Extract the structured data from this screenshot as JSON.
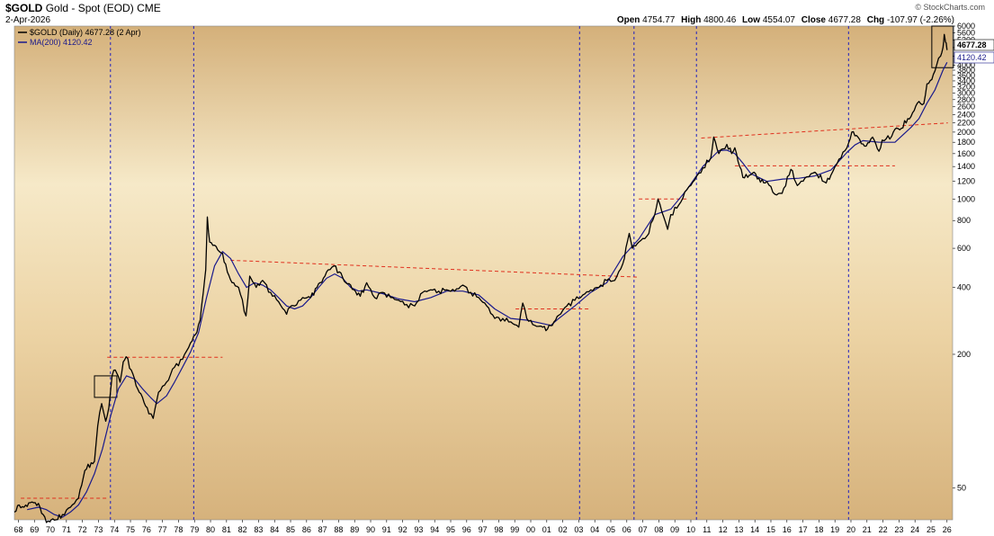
{
  "header": {
    "symbol": "$GOLD",
    "name": "Gold - Spot (EOD)",
    "exchange": "CME",
    "date": "2-Apr-2026",
    "brand": "© StockCharts.com",
    "open_label": "Open",
    "open": "4754.77",
    "high_label": "High",
    "high": "4800.46",
    "low_label": "Low",
    "low": "4554.07",
    "close_label": "Close",
    "close": "4677.28",
    "chg_label": "Chg",
    "chg": "-107.97 (-2.26%)"
  },
  "legend": {
    "price": "$GOLD (Daily) 4677.28 (2 Apr)",
    "ma": "MA(200) 4120.42"
  },
  "colors": {
    "price": "#000000",
    "ma": "#1a1a8c",
    "trendline": "#e0301e",
    "cycle_line": "#2020c0",
    "bg_light": "#f6e8c6",
    "bg_dark": "#d7b47e"
  },
  "chart_data": {
    "type": "line",
    "scale": "log",
    "ylim": [
      36,
      6000
    ],
    "xlim": [
      1968.0,
      2026.6
    ],
    "x_ticks": [
      "68",
      "69",
      "70",
      "71",
      "72",
      "73",
      "74",
      "75",
      "76",
      "77",
      "78",
      "79",
      "80",
      "81",
      "82",
      "83",
      "84",
      "85",
      "86",
      "87",
      "88",
      "89",
      "90",
      "91",
      "92",
      "93",
      "94",
      "95",
      "96",
      "97",
      "98",
      "99",
      "00",
      "01",
      "02",
      "03",
      "04",
      "05",
      "06",
      "07",
      "08",
      "09",
      "10",
      "11",
      "12",
      "13",
      "14",
      "15",
      "16",
      "17",
      "18",
      "19",
      "20",
      "21",
      "22",
      "23",
      "24",
      "25",
      "26"
    ],
    "y_ticks": [
      50,
      200,
      400,
      600,
      800,
      1000,
      1200,
      1400,
      1600,
      1800,
      2000,
      2200,
      2400,
      2600,
      2800,
      3000,
      3200,
      3400,
      3600,
      3800,
      4000,
      4400,
      4800,
      5200,
      5600,
      6000
    ],
    "last_price": 4677.28,
    "last_ma": 4120.42,
    "series": [
      {
        "name": "$GOLD (Daily) 4677.28 (2 Apr)",
        "x": [
          1968.0,
          1968.3,
          1968.6,
          1969.0,
          1969.3,
          1969.6,
          1970.0,
          1970.3,
          1970.6,
          1971.0,
          1971.5,
          1972.0,
          1972.4,
          1972.8,
          1973.0,
          1973.2,
          1973.45,
          1973.7,
          1973.9,
          1974.1,
          1974.3,
          1974.6,
          1974.8,
          1974.98,
          1975.3,
          1975.7,
          1976.0,
          1976.4,
          1976.67,
          1977.0,
          1977.5,
          1978.0,
          1978.5,
          1979.0,
          1979.3,
          1979.6,
          1979.8,
          1979.95,
          1980.05,
          1980.2,
          1980.5,
          1980.8,
          1981.0,
          1981.3,
          1981.6,
          1982.0,
          1982.47,
          1982.7,
          1983.1,
          1983.5,
          1984.0,
          1984.5,
          1985.0,
          1985.2,
          1985.5,
          1986.0,
          1986.5,
          1986.9,
          1987.3,
          1987.6,
          1987.95,
          1988.3,
          1988.7,
          1989.0,
          1989.4,
          1989.8,
          1990.0,
          1990.5,
          1991.0,
          1991.5,
          1992.0,
          1992.5,
          1993.0,
          1993.5,
          1994.0,
          1994.5,
          1995.0,
          1995.5,
          1996.0,
          1996.5,
          1997.0,
          1997.5,
          1998.0,
          1998.5,
          1999.0,
          1999.5,
          1999.75,
          2000.0,
          2000.5,
          2001.0,
          2001.3,
          2001.7,
          2002.0,
          2002.5,
          2003.0,
          2003.5,
          2004.0,
          2004.5,
          2005.0,
          2005.5,
          2006.0,
          2006.4,
          2006.6,
          2007.0,
          2007.5,
          2008.0,
          2008.2,
          2008.8,
          2009.0,
          2009.5,
          2010.0,
          2010.5,
          2011.0,
          2011.5,
          2011.68,
          2012.0,
          2012.5,
          2012.8,
          2013.0,
          2013.3,
          2013.5,
          2013.9,
          2014.2,
          2014.6,
          2015.0,
          2015.5,
          2015.95,
          2016.5,
          2016.9,
          2017.5,
          2018.0,
          2018.7,
          2019.0,
          2019.5,
          2020.0,
          2020.3,
          2020.6,
          2020.8,
          2021.0,
          2021.2,
          2021.6,
          2022.0,
          2022.2,
          2022.8,
          2023.0,
          2023.4,
          2023.8,
          2024.0,
          2024.4,
          2024.8,
          2025.0,
          2025.3,
          2025.6,
          2025.85,
          2026.0,
          2026.08,
          2026.15,
          2026.25
        ],
        "values": [
          39,
          42,
          41,
          43,
          43,
          41,
          35,
          36,
          36,
          38,
          41,
          45,
          60,
          65,
          66,
          95,
          120,
          100,
          115,
          160,
          170,
          150,
          185,
          195,
          170,
          140,
          128,
          108,
          103,
          135,
          150,
          175,
          190,
          225,
          245,
          285,
          380,
          480,
          830,
          640,
          620,
          580,
          570,
          470,
          420,
          400,
          298,
          450,
          400,
          430,
          380,
          345,
          303,
          325,
          330,
          360,
          360,
          400,
          440,
          480,
          500,
          470,
          420,
          410,
          370,
          380,
          420,
          360,
          380,
          360,
          350,
          335,
          330,
          380,
          390,
          385,
          390,
          385,
          410,
          380,
          360,
          330,
          290,
          290,
          280,
          265,
          340,
          290,
          270,
          265,
          260,
          280,
          300,
          330,
          350,
          370,
          390,
          400,
          430,
          430,
          510,
          700,
          600,
          640,
          680,
          850,
          1000,
          730,
          850,
          940,
          1100,
          1220,
          1380,
          1530,
          1900,
          1600,
          1760,
          1600,
          1700,
          1400,
          1250,
          1280,
          1320,
          1190,
          1200,
          1050,
          1060,
          1360,
          1150,
          1260,
          1320,
          1180,
          1280,
          1510,
          1700,
          2000,
          1930,
          1850,
          1770,
          1730,
          1900,
          1640,
          1840,
          1920,
          2060,
          2080,
          2300,
          2350,
          2700,
          2690,
          3300,
          3450,
          4000,
          4400,
          4800,
          5500,
          5100,
          4677
        ]
      },
      {
        "name": "MA(200) 4120.42",
        "x": [
          1968.8,
          1969.5,
          1970.0,
          1970.5,
          1971.0,
          1971.5,
          1972.0,
          1972.5,
          1973.0,
          1973.5,
          1974.0,
          1974.5,
          1975.0,
          1975.5,
          1976.0,
          1976.5,
          1976.9,
          1977.5,
          1978.0,
          1978.5,
          1979.0,
          1979.5,
          1980.0,
          1980.5,
          1981.0,
          1981.5,
          1982.0,
          1982.5,
          1983.0,
          1983.5,
          1984.0,
          1984.5,
          1985.0,
          1985.5,
          1986.0,
          1986.5,
          1987.0,
          1987.5,
          1988.0,
          1988.5,
          1989.0,
          1989.5,
          1990.0,
          1991.0,
          1992.0,
          1993.0,
          1994.0,
          1995.0,
          1996.0,
          1997.0,
          1998.0,
          1999.0,
          2000.0,
          2001.0,
          2001.5,
          2002.0,
          2003.0,
          2004.0,
          2005.0,
          2006.0,
          2007.0,
          2008.0,
          2009.0,
          2010.0,
          2011.0,
          2012.0,
          2012.5,
          2013.0,
          2013.5,
          2014.0,
          2015.0,
          2016.0,
          2017.0,
          2018.0,
          2019.0,
          2020.0,
          2020.5,
          2021.0,
          2022.0,
          2023.0,
          2024.0,
          2024.5,
          2025.0,
          2025.5,
          2026.0,
          2026.25
        ],
        "values": [
          40,
          41,
          40,
          38,
          37,
          39,
          42,
          48,
          58,
          75,
          105,
          140,
          160,
          155,
          140,
          128,
          120,
          130,
          150,
          175,
          205,
          250,
          360,
          500,
          580,
          540,
          460,
          400,
          420,
          410,
          390,
          360,
          330,
          320,
          330,
          360,
          400,
          440,
          460,
          440,
          400,
          385,
          390,
          375,
          355,
          345,
          360,
          385,
          385,
          370,
          320,
          290,
          285,
          275,
          270,
          290,
          330,
          380,
          420,
          550,
          660,
          850,
          900,
          1100,
          1400,
          1650,
          1660,
          1600,
          1450,
          1300,
          1200,
          1230,
          1240,
          1270,
          1350,
          1620,
          1750,
          1830,
          1800,
          1800,
          2100,
          2300,
          2700,
          3100,
          3800,
          4120
        ]
      }
    ],
    "trendlines": [
      {
        "x": [
          1968.4,
          1973.8
        ],
        "values": [
          45,
          45
        ]
      },
      {
        "x": [
          1973.8,
          1981.0
        ],
        "values": [
          194,
          194
        ]
      },
      {
        "x": [
          1981.5,
          2007.0
        ],
        "values": [
          530,
          445
        ]
      },
      {
        "x": [
          1999.3,
          2004.0
        ],
        "values": [
          320,
          320
        ]
      },
      {
        "x": [
          2007.0,
          2010.0
        ],
        "values": [
          1000,
          1000
        ]
      },
      {
        "x": [
          2010.9,
          2026.3
        ],
        "values": [
          1880,
          2200
        ]
      },
      {
        "x": [
          2013.0,
          2023.0
        ],
        "values": [
          1410,
          1410
        ]
      }
    ],
    "cycle_lines": [
      1974.0,
      1979.2,
      2003.3,
      2006.7,
      2010.6,
      2020.1
    ],
    "boxes": [
      {
        "x": [
          1973.0,
          1974.4
        ],
        "values": [
          128,
          160
        ]
      },
      {
        "x": [
          2025.3,
          2026.65
        ],
        "values": [
          3900,
          6000
        ]
      }
    ]
  }
}
